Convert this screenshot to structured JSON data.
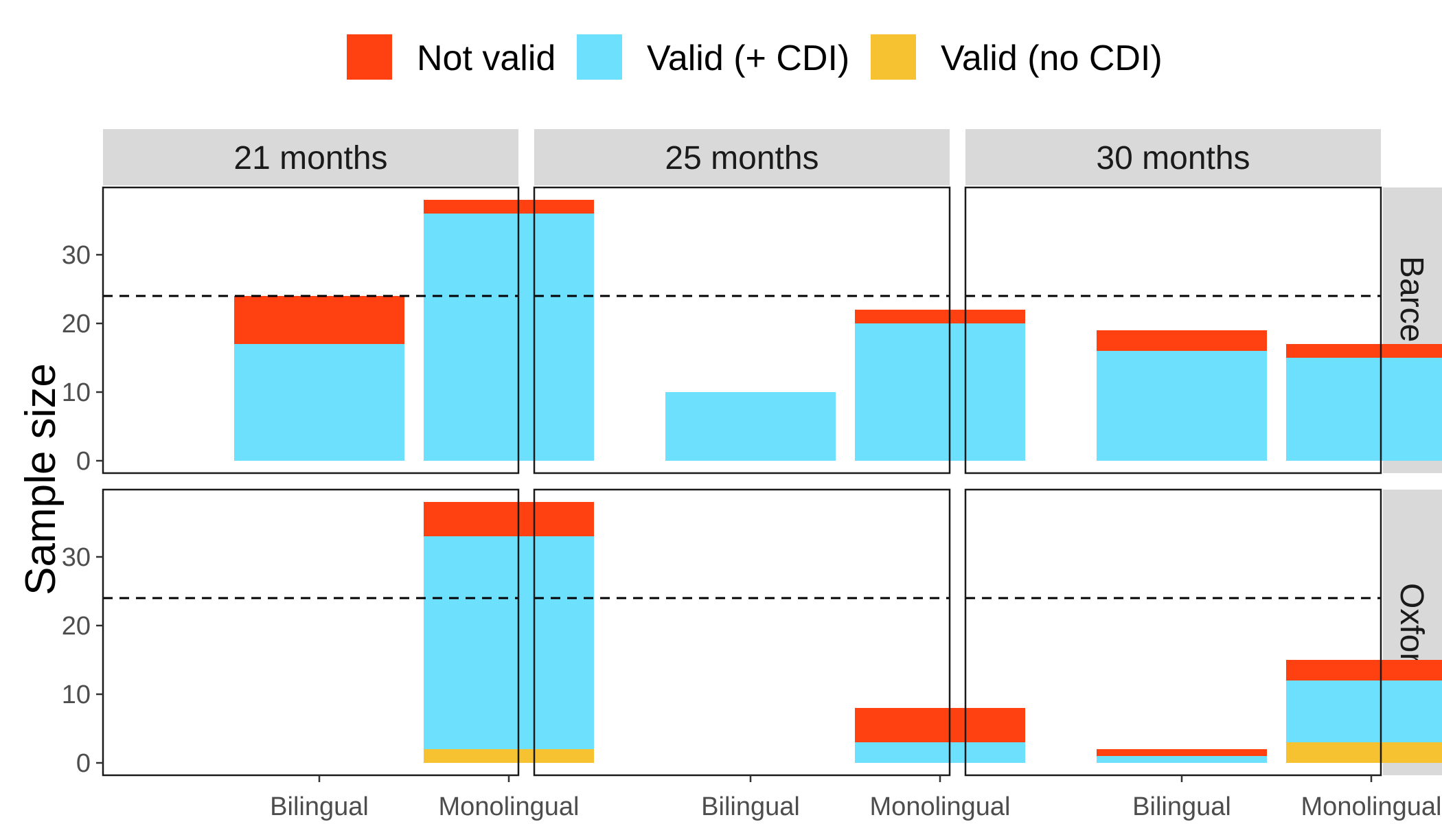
{
  "chart_data": {
    "type": "bar",
    "stacked": true,
    "ylabel": "Sample size",
    "xlabel": "",
    "ylim": [
      0,
      38
    ],
    "yticks": [
      0,
      10,
      20,
      30
    ],
    "reference_line": {
      "y": 24,
      "style": "dashed"
    },
    "legend": {
      "position": "top",
      "entries": [
        {
          "key": "not_valid",
          "label": "Not valid",
          "color": "#FF4112"
        },
        {
          "key": "valid_cdi",
          "label": "Valid (+ CDI)",
          "color": "#6DE0FE"
        },
        {
          "key": "valid_no_cdi",
          "label": "Valid (no CDI)",
          "color": "#F6C231"
        }
      ]
    },
    "columns": [
      "21 months",
      "25 months",
      "30 months"
    ],
    "rows": [
      "Barcelona",
      "Oxford"
    ],
    "categories": [
      "Bilingual",
      "Monolingual"
    ],
    "panels": [
      {
        "row": "Barcelona",
        "column": "21 months",
        "bars": [
          {
            "category": "Bilingual",
            "valid_no_cdi": 0,
            "valid_cdi": 17,
            "not_valid": 7
          },
          {
            "category": "Monolingual",
            "valid_no_cdi": 0,
            "valid_cdi": 36,
            "not_valid": 2
          }
        ]
      },
      {
        "row": "Barcelona",
        "column": "25 months",
        "bars": [
          {
            "category": "Bilingual",
            "valid_no_cdi": 0,
            "valid_cdi": 10,
            "not_valid": 0
          },
          {
            "category": "Monolingual",
            "valid_no_cdi": 0,
            "valid_cdi": 20,
            "not_valid": 2
          }
        ]
      },
      {
        "row": "Barcelona",
        "column": "30 months",
        "bars": [
          {
            "category": "Bilingual",
            "valid_no_cdi": 0,
            "valid_cdi": 16,
            "not_valid": 3
          },
          {
            "category": "Monolingual",
            "valid_no_cdi": 0,
            "valid_cdi": 15,
            "not_valid": 2
          }
        ]
      },
      {
        "row": "Oxford",
        "column": "21 months",
        "bars": [
          {
            "category": "Bilingual",
            "valid_no_cdi": 0,
            "valid_cdi": 0,
            "not_valid": 0
          },
          {
            "category": "Monolingual",
            "valid_no_cdi": 2,
            "valid_cdi": 31,
            "not_valid": 5
          }
        ]
      },
      {
        "row": "Oxford",
        "column": "25 months",
        "bars": [
          {
            "category": "Bilingual",
            "valid_no_cdi": 0,
            "valid_cdi": 0,
            "not_valid": 0
          },
          {
            "category": "Monolingual",
            "valid_no_cdi": 0,
            "valid_cdi": 3,
            "not_valid": 5
          }
        ]
      },
      {
        "row": "Oxford",
        "column": "30 months",
        "bars": [
          {
            "category": "Bilingual",
            "valid_no_cdi": 0,
            "valid_cdi": 1,
            "not_valid": 1
          },
          {
            "category": "Monolingual",
            "valid_no_cdi": 3,
            "valid_cdi": 9,
            "not_valid": 3
          }
        ]
      }
    ]
  }
}
